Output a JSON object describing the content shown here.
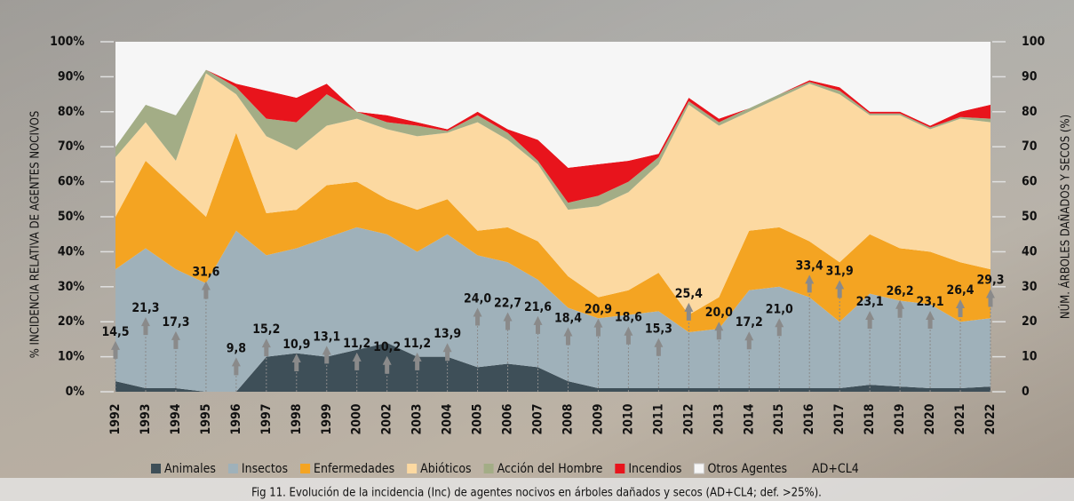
{
  "chart_data": {
    "type": "area",
    "y_label": "% INCIDENCIA RELATIVA DE AGENTES NOCIVOS",
    "y2_label": "NÚM. ÁRBOLES DAÑADOS Y SECOS (%)",
    "caption": "Fig 11. Evolución de la incidencia (Inc) de agentes nocivos en árboles dañados y secos (AD+CL4; def. >25%).",
    "categories": [
      "1992",
      "1993",
      "1994",
      "1995",
      "1996",
      "1997",
      "1998",
      "1999",
      "2000",
      "2002",
      "2003",
      "2004",
      "2005",
      "2006",
      "2007",
      "2008",
      "2009",
      "2010",
      "2011",
      "2012",
      "2013",
      "2014",
      "2015",
      "2016",
      "2017",
      "2018",
      "2019",
      "2020",
      "2021",
      "2022"
    ],
    "ylim": [
      0,
      100
    ],
    "yticks": [
      {
        "value": 0,
        "label": "0%"
      },
      {
        "value": 10,
        "label": "10%"
      },
      {
        "value": 20,
        "label": "20%"
      },
      {
        "value": 30,
        "label": "30%"
      },
      {
        "value": 40,
        "label": "40%"
      },
      {
        "value": 50,
        "label": "50%"
      },
      {
        "value": 60,
        "label": "60%"
      },
      {
        "value": 70,
        "label": "70%"
      },
      {
        "value": 80,
        "label": "80%"
      },
      {
        "value": 90,
        "label": "90%"
      },
      {
        "value": 100,
        "label": "100%"
      }
    ],
    "y2lim": [
      0,
      100
    ],
    "y2ticks": [
      0,
      10,
      20,
      30,
      40,
      50,
      60,
      70,
      80,
      90,
      100
    ],
    "stacked": true,
    "legend": "bottom",
    "series": [
      {
        "name": "Animales",
        "color": "#3e4f58",
        "values": [
          3,
          1,
          1,
          0,
          0,
          10,
          11,
          10,
          12,
          14,
          10,
          10,
          7,
          8,
          7,
          3,
          1,
          1,
          1,
          1,
          1,
          1,
          1,
          1,
          1,
          2,
          1.5,
          1,
          1,
          1.5
        ]
      },
      {
        "name": "Insectos",
        "color": "#9fb1ba",
        "values": [
          32,
          40,
          34,
          31,
          46,
          29,
          30,
          34,
          35,
          31,
          30,
          35,
          32,
          29,
          25,
          21,
          20,
          21,
          22,
          16,
          17,
          28,
          29,
          26,
          19,
          26,
          24.5,
          24,
          19,
          19.5
        ]
      },
      {
        "name": "Enfermedades",
        "color": "#f4a422",
        "values": [
          15,
          25,
          23,
          19,
          28,
          12,
          11,
          15,
          13,
          10,
          12,
          10,
          7,
          10,
          11,
          9,
          6,
          7,
          11,
          5,
          9,
          17,
          17,
          16,
          17,
          17,
          15,
          15,
          17,
          14
        ]
      },
      {
        "name": "Abióticos",
        "color": "#fcd9a1",
        "values": [
          17,
          11,
          8,
          41,
          11,
          22,
          17,
          17,
          18,
          20,
          21,
          19,
          31,
          25,
          22,
          19,
          26,
          28,
          31,
          60,
          49,
          34,
          37,
          45,
          48,
          34,
          38,
          35,
          41,
          42
        ]
      },
      {
        "name": "Acción del Hombre",
        "color": "#a3ad86",
        "values": [
          3,
          5,
          13,
          1,
          2,
          5,
          8,
          9,
          2,
          2,
          3,
          0.5,
          2,
          2,
          1,
          2,
          3,
          3,
          2,
          1,
          1,
          1,
          1,
          0.5,
          1,
          0.5,
          0.5,
          0.5,
          0.5,
          1
        ]
      },
      {
        "name": "Incendios",
        "color": "#e8141c",
        "values": [
          0,
          0,
          0,
          0,
          1,
          8,
          7,
          3,
          0,
          2,
          1,
          0.5,
          1,
          1,
          6,
          10,
          9,
          6,
          1,
          1,
          1,
          0,
          0,
          0.5,
          1,
          0.5,
          0.5,
          0.5,
          1.5,
          4
        ]
      },
      {
        "name": "Otros Agentes",
        "color": "#f6f6f6",
        "values": [
          30,
          18,
          21,
          8,
          12,
          14,
          16,
          12,
          20,
          21,
          23,
          25,
          20,
          25,
          28,
          36,
          35,
          34,
          32,
          16,
          22,
          19,
          15,
          11,
          13,
          20,
          20,
          24,
          20,
          18
        ]
      },
      {
        "name": "AD+CL4",
        "axis": "y2",
        "color": "#8a8a8a",
        "values": [
          14.5,
          21.3,
          17.3,
          31.6,
          9.8,
          15.2,
          10.9,
          13.1,
          11.2,
          10.2,
          11.2,
          13.9,
          24.0,
          22.7,
          21.6,
          18.4,
          20.9,
          18.6,
          15.3,
          25.4,
          20.0,
          17.2,
          21.0,
          33.4,
          31.9,
          23.1,
          26.2,
          23.1,
          26.4,
          29.3
        ],
        "value_labels": [
          "14,5",
          "21,3",
          "17,3",
          "31,6",
          "9,8",
          "15,2",
          "10,9",
          "13,1",
          "11,2",
          "10,2",
          "11,2",
          "13,9",
          "24,0",
          "22,7",
          "21,6",
          "18,4",
          "20,9",
          "18,6",
          "15,3",
          "25,4",
          "20,0",
          "17,2",
          "21,0",
          "33,4",
          "31,9",
          "23,1",
          "26,2",
          "23,1",
          "26,4",
          "29,3"
        ]
      }
    ]
  }
}
